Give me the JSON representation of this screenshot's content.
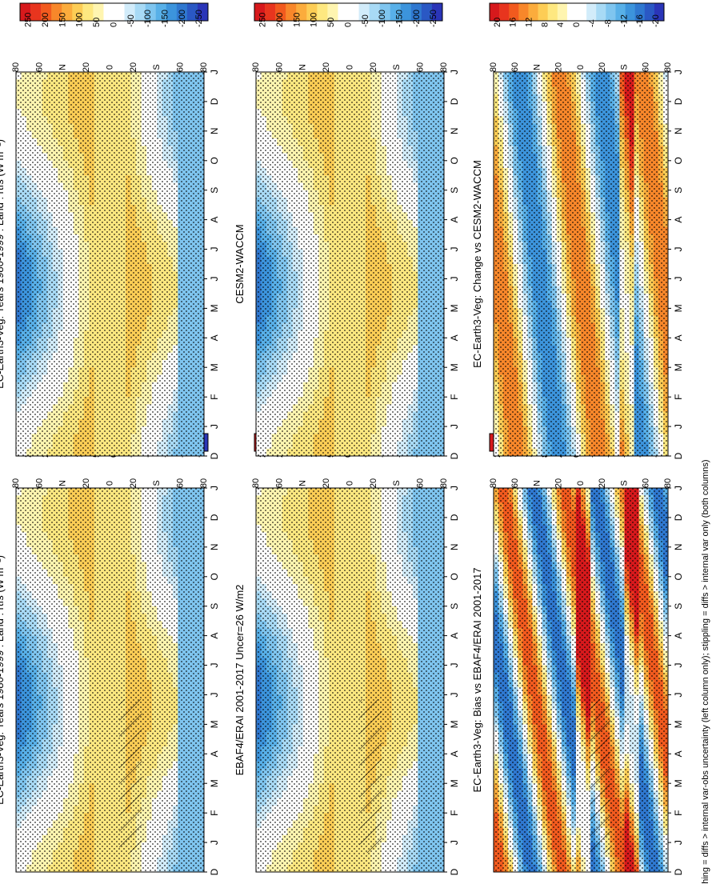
{
  "footnote": "hatching = diffs > internal var-obs uncertainty (left column only); stippling = diffs > internal var only (both columns)",
  "month_labels": [
    "D",
    "J",
    "F",
    "M",
    "A",
    "M",
    "J",
    "J",
    "A",
    "S",
    "O",
    "N",
    "D",
    "J"
  ],
  "lat_labels_bottom_row": [
    "80",
    "60",
    "40",
    "20",
    "0",
    "20",
    "40",
    "60",
    "80"
  ],
  "lat_labels": [
    "80",
    "60",
    "N",
    "20",
    "0",
    "20",
    "S",
    "60",
    "80"
  ],
  "colorbar_top_ticks": [
    "250",
    "200",
    "150",
    "100",
    "50",
    "0",
    "-50",
    "-100",
    "-150",
    "-200",
    "-250"
  ],
  "colorbar_diff_ticks": [
    "20",
    "16",
    "12",
    "8",
    "4",
    "0",
    "-4",
    "-8",
    "-12",
    "-16",
    "-20"
  ],
  "palette": [
    "#d7191c",
    "#e8351e",
    "#f25a1e",
    "#f8872a",
    "#fbac3c",
    "#fdcd55",
    "#fee880",
    "#fff5b0",
    "#ffffff",
    "#ffffff",
    "#d2ecfa",
    "#a8daf5",
    "#7fc5ef",
    "#58b0e8",
    "#3c94dc",
    "#2f78d0",
    "#2a58c4",
    "#2a35b8"
  ],
  "colors": {
    "positive": "#fdcd55",
    "negative": "#58b0e8",
    "strong_positive": "#d7191c",
    "strong_negative": "#2a35b8"
  },
  "panels": [
    {
      "id": "top-left",
      "title": "EC-Earth3-Veg: Years 1980-1999 : Land : rtfs (W m⁻²)"
    },
    {
      "id": "top-right",
      "title": "EC-Earth3-Veg: Years 1980-1999 : Land : rtfs (W m⁻²)"
    },
    {
      "id": "mid-left",
      "title": "EBAF4/ERAI 2001-2017 Uncer=26 W/m2"
    },
    {
      "id": "mid-right",
      "title": "CESM2-WACCM"
    },
    {
      "id": "bot-left",
      "title": "EC-Earth3-Veg: Bias vs EBAF4/ERAI 2001-2017"
    },
    {
      "id": "bot-right",
      "title": "EC-Earth3-Veg: Change vs CESM2-WACCM"
    }
  ],
  "chart_data": [
    {
      "type": "heatmap",
      "title": "EC-Earth3-Veg: Years 1980-1999 : Land : rtfs (W m⁻²)",
      "x": "month (D to J)",
      "y": "latitude (80N to 80S)",
      "zlim": [
        -250,
        250
      ],
      "note": "annual-cycle zonal-mean net radiation, hatched and stippled"
    },
    {
      "type": "heatmap",
      "title": "EC-Earth3-Veg: Years 1980-1999 : Land : rtfs (W m⁻²)",
      "x": "month (D to J)",
      "y": "latitude (80N to 80S)",
      "zlim": [
        -250,
        250
      ],
      "note": "stippled"
    },
    {
      "type": "heatmap",
      "title": "EBAF4/ERAI 2001-2017 Uncer=26 W/m2",
      "x": "month (D to J)",
      "y": "latitude (80N to 80S)",
      "zlim": [
        -250,
        250
      ]
    },
    {
      "type": "heatmap",
      "title": "CESM2-WACCM",
      "x": "month (D to J)",
      "y": "latitude (80N to 80S)",
      "zlim": [
        -250,
        250
      ]
    },
    {
      "type": "heatmap",
      "title": "EC-Earth3-Veg: Bias vs EBAF4/ERAI 2001-2017",
      "x": "month (D to J)",
      "y": "latitude (80N to 80S)",
      "zlim": [
        -20,
        20
      ]
    },
    {
      "type": "heatmap",
      "title": "EC-Earth3-Veg: Change vs CESM2-WACCM",
      "x": "month (D to J)",
      "y": "latitude (80N to 80S)",
      "zlim": [
        -20,
        20
      ]
    }
  ]
}
